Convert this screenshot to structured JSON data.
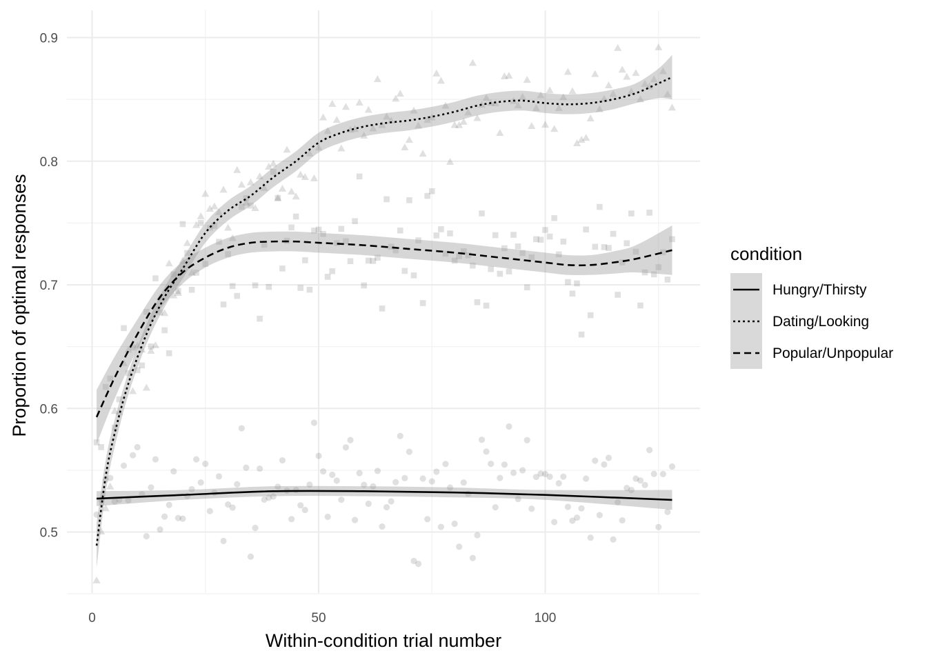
{
  "chart_data": {
    "type": "scatter",
    "title": "",
    "xlabel": "Within-condition trial number",
    "ylabel": "Proportion of optimal responses",
    "xlim": [
      -5.5,
      134
    ],
    "ylim": [
      0.45,
      0.917
    ],
    "x_ticks": [
      0,
      50,
      100
    ],
    "x_tick_labels": [
      "0",
      "50",
      "100"
    ],
    "y_ticks": [
      0.5,
      0.6,
      0.7,
      0.8,
      0.9
    ],
    "y_tick_labels": [
      "0.5",
      "0.6",
      "0.7",
      "0.8",
      "0.9"
    ],
    "grid": true,
    "legend_position": "right",
    "legend_title": "condition",
    "series": [
      {
        "name": "Hungry/Thirsty",
        "line_style": "solid",
        "marker": "circle",
        "points_summary": "scattered points between about 0.47 and 0.60 across trials 1-128",
        "smooth": {
          "x": [
            1,
            20,
            40,
            60,
            80,
            100,
            128
          ],
          "y": [
            0.527,
            0.53,
            0.533,
            0.533,
            0.532,
            0.53,
            0.526
          ],
          "ci_halfwidth": [
            0.006,
            0.004,
            0.004,
            0.004,
            0.004,
            0.004,
            0.008
          ]
        }
      },
      {
        "name": "Dating/Looking",
        "line_style": "dotted",
        "marker": "triangle",
        "points_summary": "scattered points rising from about 0.48 to 0.90",
        "smooth": {
          "x": [
            1,
            3,
            5,
            8,
            12,
            16,
            20,
            25,
            30,
            35,
            40,
            45,
            50,
            55,
            60,
            65,
            70,
            75,
            80,
            85,
            90,
            95,
            100,
            105,
            110,
            115,
            120,
            125,
            128
          ],
          "y": [
            0.489,
            0.545,
            0.58,
            0.62,
            0.66,
            0.69,
            0.713,
            0.742,
            0.76,
            0.772,
            0.787,
            0.8,
            0.815,
            0.823,
            0.828,
            0.831,
            0.833,
            0.836,
            0.84,
            0.845,
            0.848,
            0.849,
            0.847,
            0.846,
            0.847,
            0.85,
            0.855,
            0.863,
            0.868
          ],
          "ci_halfwidth": [
            0.018,
            0.013,
            0.011,
            0.009,
            0.008,
            0.008,
            0.008,
            0.008,
            0.008,
            0.008,
            0.008,
            0.008,
            0.008,
            0.008,
            0.008,
            0.008,
            0.008,
            0.008,
            0.008,
            0.008,
            0.008,
            0.008,
            0.008,
            0.008,
            0.008,
            0.008,
            0.008,
            0.012,
            0.018
          ]
        }
      },
      {
        "name": "Popular/Unpopular",
        "line_style": "dashed",
        "marker": "square",
        "points_summary": "scattered points mostly between 0.64 and 0.79",
        "smooth": {
          "x": [
            1,
            5,
            10,
            15,
            20,
            25,
            30,
            35,
            40,
            45,
            50,
            60,
            70,
            80,
            90,
            100,
            105,
            110,
            115,
            120,
            128
          ],
          "y": [
            0.593,
            0.625,
            0.66,
            0.69,
            0.71,
            0.722,
            0.73,
            0.734,
            0.735,
            0.735,
            0.734,
            0.732,
            0.729,
            0.726,
            0.722,
            0.718,
            0.716,
            0.716,
            0.718,
            0.721,
            0.728
          ],
          "ci_halfwidth": [
            0.022,
            0.017,
            0.012,
            0.01,
            0.009,
            0.008,
            0.008,
            0.008,
            0.008,
            0.008,
            0.008,
            0.008,
            0.008,
            0.008,
            0.008,
            0.008,
            0.008,
            0.008,
            0.009,
            0.011,
            0.02
          ]
        }
      }
    ]
  }
}
